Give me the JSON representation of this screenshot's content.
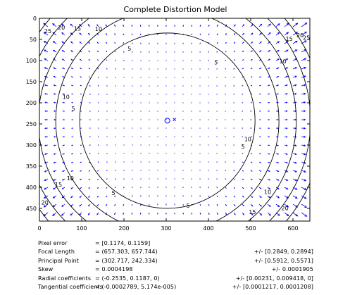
{
  "chart_data": {
    "type": "vector-field",
    "title": "Complete Distortion Model",
    "xlabel": "",
    "ylabel": "",
    "xlim": [
      0,
      640
    ],
    "ylim": [
      0,
      480
    ],
    "y_axis_reversed": true,
    "x_ticks": [
      0,
      100,
      200,
      300,
      400,
      500,
      600
    ],
    "y_ticks": [
      0,
      50,
      100,
      150,
      200,
      250,
      300,
      350,
      400,
      450
    ],
    "grid": false,
    "principal_point": [
      302.717,
      242.334
    ],
    "image_center": [
      319.5,
      239.5
    ],
    "contour_levels": [
      5,
      10,
      15,
      20,
      25
    ],
    "contour_labels": [
      {
        "text": "5",
        "x": 213,
        "y": 72
      },
      {
        "text": "5",
        "x": 418,
        "y": 104
      },
      {
        "text": "5",
        "x": 80,
        "y": 213
      },
      {
        "text": "5",
        "x": 482,
        "y": 303
      },
      {
        "text": "5",
        "x": 175,
        "y": 413
      },
      {
        "text": "5",
        "x": 352,
        "y": 443
      },
      {
        "text": "10",
        "x": 140,
        "y": 25
      },
      {
        "text": "10",
        "x": 63,
        "y": 186
      },
      {
        "text": "10",
        "x": 493,
        "y": 286
      },
      {
        "text": "10",
        "x": 73,
        "y": 378
      },
      {
        "text": "10",
        "x": 540,
        "y": 411
      },
      {
        "text": "10",
        "x": 576,
        "y": 102
      },
      {
        "text": "15",
        "x": 90,
        "y": 24
      },
      {
        "text": "15",
        "x": 591,
        "y": 48
      },
      {
        "text": "15",
        "x": 45,
        "y": 393
      },
      {
        "text": "15",
        "x": 504,
        "y": 458
      },
      {
        "text": "20",
        "x": 52,
        "y": 22
      },
      {
        "text": "20",
        "x": 617,
        "y": 40
      },
      {
        "text": "20",
        "x": 13,
        "y": 436
      },
      {
        "text": "20",
        "x": 581,
        "y": 449
      },
      {
        "text": "25",
        "x": 20,
        "y": 30
      },
      {
        "text": "25",
        "x": 632,
        "y": 46
      }
    ],
    "radial_coefficients": [
      -0.2535,
      0.1187,
      0
    ],
    "tangential_coefficients": [
      -0.0002789,
      5.174e-05
    ],
    "focal_length": [
      657.303,
      657.744
    ]
  },
  "colors": {
    "arrows": "#0000ff",
    "contours": "#000000",
    "principal_point_marker": "#0000ff",
    "center_marker": "#0000ff",
    "axes": "#000000"
  },
  "parameters": [
    {
      "label": "Pixel error",
      "value": "= [0.1174, 0.1159]",
      "uncertainty": ""
    },
    {
      "label": "Focal Length",
      "value": "= (657.303, 657.744)",
      "uncertainty": "+/- [0.2849, 0.2894]"
    },
    {
      "label": "Principal Point",
      "value": "= (302.717, 242.334)",
      "uncertainty": "+/- [0.5912, 0.5571]"
    },
    {
      "label": "Skew",
      "value": "= 0.0004198",
      "uncertainty": "+/- 0.0001905"
    },
    {
      "label": "Radial coefficients",
      "value": "= (-0.2535, 0.1187, 0)",
      "uncertainty": "+/- [0.00231, 0.009418, 0]"
    },
    {
      "label": "Tangential coefficients",
      "value": "= (-0.0002789, 5.174e-005)",
      "uncertainty": "+/- [0.0001217, 0.0001208]"
    }
  ]
}
